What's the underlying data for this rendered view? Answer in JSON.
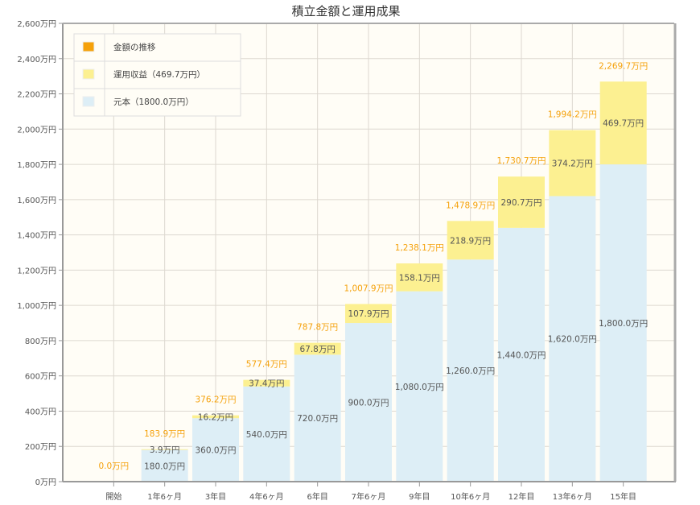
{
  "chart_data": {
    "type": "bar",
    "stacked": true,
    "title": "積立金額と運用成果",
    "categories": [
      "開始",
      "1年6ヶ月",
      "3年目",
      "4年6ヶ月",
      "6年目",
      "7年6ヶ月",
      "9年目",
      "10年6ヶ月",
      "12年目",
      "13年6ヶ月",
      "15年目"
    ],
    "ylim": [
      0,
      2600
    ],
    "yticks": [
      0,
      200,
      400,
      600,
      800,
      1000,
      1200,
      1400,
      1600,
      1800,
      2000,
      2200,
      2400,
      2600
    ],
    "ytick_labels": [
      "0万円",
      "200万円",
      "400万円",
      "600万円",
      "800万円",
      "1,000万円",
      "1,200万円",
      "1,400万円",
      "1,600万円",
      "1,800万円",
      "2,000万円",
      "2,200万円",
      "2,400万円",
      "2,600万円"
    ],
    "unit": "万円",
    "grid": true,
    "legend_position": "top-left",
    "series": [
      {
        "name": "元本（1800.0万円）",
        "color": "#ddeef6",
        "values": [
          0,
          180,
          360,
          540,
          720,
          900,
          1080,
          1260,
          1440,
          1620,
          1800
        ],
        "labels": [
          "",
          "180.0万円",
          "360.0万円",
          "540.0万円",
          "720.0万円",
          "900.0万円",
          "1,080.0万円",
          "1,260.0万円",
          "1,440.0万円",
          "1,620.0万円",
          "1,800.0万円"
        ]
      },
      {
        "name": "運用収益（469.7万円）",
        "color": "#fcf091",
        "values": [
          0,
          3.9,
          16.2,
          37.4,
          67.8,
          107.9,
          158.1,
          218.9,
          290.7,
          374.2,
          469.7
        ],
        "labels": [
          "",
          "3.9万円",
          "16.2万円",
          "37.4万円",
          "67.8万円",
          "107.9万円",
          "158.1万円",
          "218.9万円",
          "290.7万円",
          "374.2万円",
          "469.7万円"
        ]
      },
      {
        "name": "金額の推移",
        "color": "#f5a10a",
        "type": "line",
        "values": [
          0,
          183.9,
          376.2,
          577.4,
          787.8,
          1007.9,
          1238.1,
          1478.9,
          1730.7,
          1994.2,
          2269.7
        ],
        "labels": [
          "0.0万円",
          "183.9万円",
          "376.2万円",
          "577.4万円",
          "787.8万円",
          "1,007.9万円",
          "1,238.1万円",
          "1,478.9万円",
          "1,730.7万円",
          "1,994.2万円",
          "2,269.7万円"
        ]
      }
    ]
  }
}
